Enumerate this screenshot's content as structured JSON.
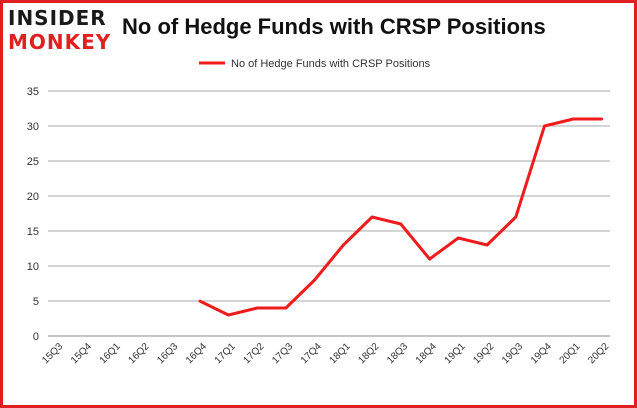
{
  "logo": {
    "line1": "INSIDER",
    "line2": "MONKEY"
  },
  "colors": {
    "series": "#ee1c1c",
    "frame": "#e02020",
    "grid": "#8c8c8c",
    "text": "#333333"
  },
  "chart_data": {
    "type": "line",
    "title": "No of Hedge Funds with CRSP Positions",
    "xlabel": "",
    "ylabel": "",
    "categories": [
      "15Q3",
      "15Q4",
      "16Q1",
      "16Q2",
      "16Q3",
      "16Q4",
      "17Q1",
      "17Q2",
      "17Q3",
      "17Q4",
      "18Q1",
      "18Q2",
      "18Q3",
      "18Q4",
      "19Q1",
      "19Q2",
      "19Q3",
      "19Q4",
      "20Q1",
      "20Q2"
    ],
    "series": [
      {
        "name": "No of Hedge Funds with CRSP Positions",
        "values": [
          null,
          null,
          null,
          null,
          null,
          5,
          3,
          4,
          4,
          8,
          13,
          17,
          16,
          11,
          14,
          13,
          17,
          30,
          31,
          31
        ]
      }
    ],
    "ylim": [
      0,
      35
    ],
    "yticks": [
      0,
      5,
      10,
      15,
      20,
      25,
      30,
      35
    ],
    "grid": true,
    "legend": "top-center"
  }
}
